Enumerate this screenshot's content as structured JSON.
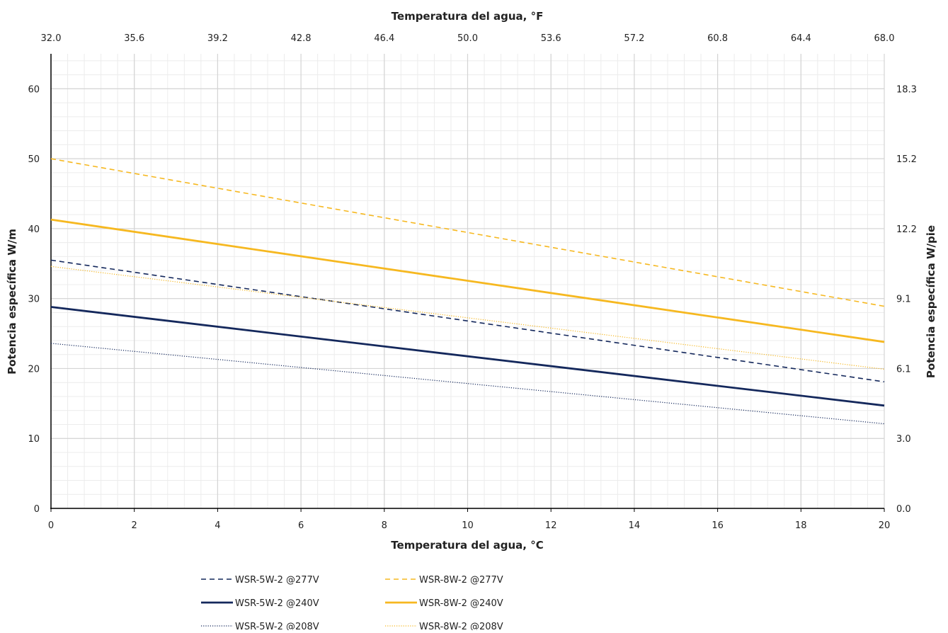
{
  "chart_data": {
    "type": "line",
    "x_label": "Temperatura del agua, °C",
    "x2_label": "Temperatura del agua, °F",
    "y_label": "Potencia específica W/m",
    "y2_label": "Potencia específica W/pie",
    "xlim": [
      0,
      20
    ],
    "ylim": [
      0,
      65
    ],
    "x_ticks": [
      "0",
      "2",
      "4",
      "6",
      "8",
      "10",
      "12",
      "14",
      "16",
      "18",
      "20"
    ],
    "x2_ticks": [
      "32.0",
      "35.6",
      "39.2",
      "42.8",
      "46.4",
      "50.0",
      "53.6",
      "57.2",
      "60.8",
      "64.4",
      "68.0"
    ],
    "y_ticks": [
      "0",
      "10",
      "20",
      "30",
      "40",
      "50",
      "60"
    ],
    "y2_ticks": [
      "0.0",
      "3.0",
      "6.1",
      "9.1",
      "12.2",
      "15.2",
      "18.3"
    ],
    "grid": true,
    "legend_position": "bottom",
    "colors": {
      "navy": "#14285c",
      "gold": "#f6b820",
      "grid_major": "#d4d4d4",
      "grid_minor": "#ececec",
      "axis": "#000000"
    },
    "series": [
      {
        "name": "WSR-5W-2 @277V",
        "color": "navy",
        "style": "dashed",
        "x": [
          0,
          20
        ],
        "y": [
          35.5,
          18.1
        ]
      },
      {
        "name": "WSR-8W-2 @277V",
        "color": "gold",
        "style": "dashed",
        "x": [
          0,
          20
        ],
        "y": [
          50.0,
          28.9
        ]
      },
      {
        "name": "WSR-5W-2 @240V",
        "color": "navy",
        "style": "solid",
        "x": [
          0,
          20
        ],
        "y": [
          28.8,
          14.7
        ]
      },
      {
        "name": "WSR-8W-2 @240V",
        "color": "gold",
        "style": "solid",
        "x": [
          0,
          20
        ],
        "y": [
          41.3,
          23.8
        ]
      },
      {
        "name": "WSR-5W-2 @208V",
        "color": "navy",
        "style": "dotted",
        "x": [
          0,
          20
        ],
        "y": [
          23.6,
          12.1
        ]
      },
      {
        "name": "WSR-8W-2 @208V",
        "color": "gold",
        "style": "dotted",
        "x": [
          0,
          20
        ],
        "y": [
          34.6,
          19.9
        ]
      }
    ]
  }
}
